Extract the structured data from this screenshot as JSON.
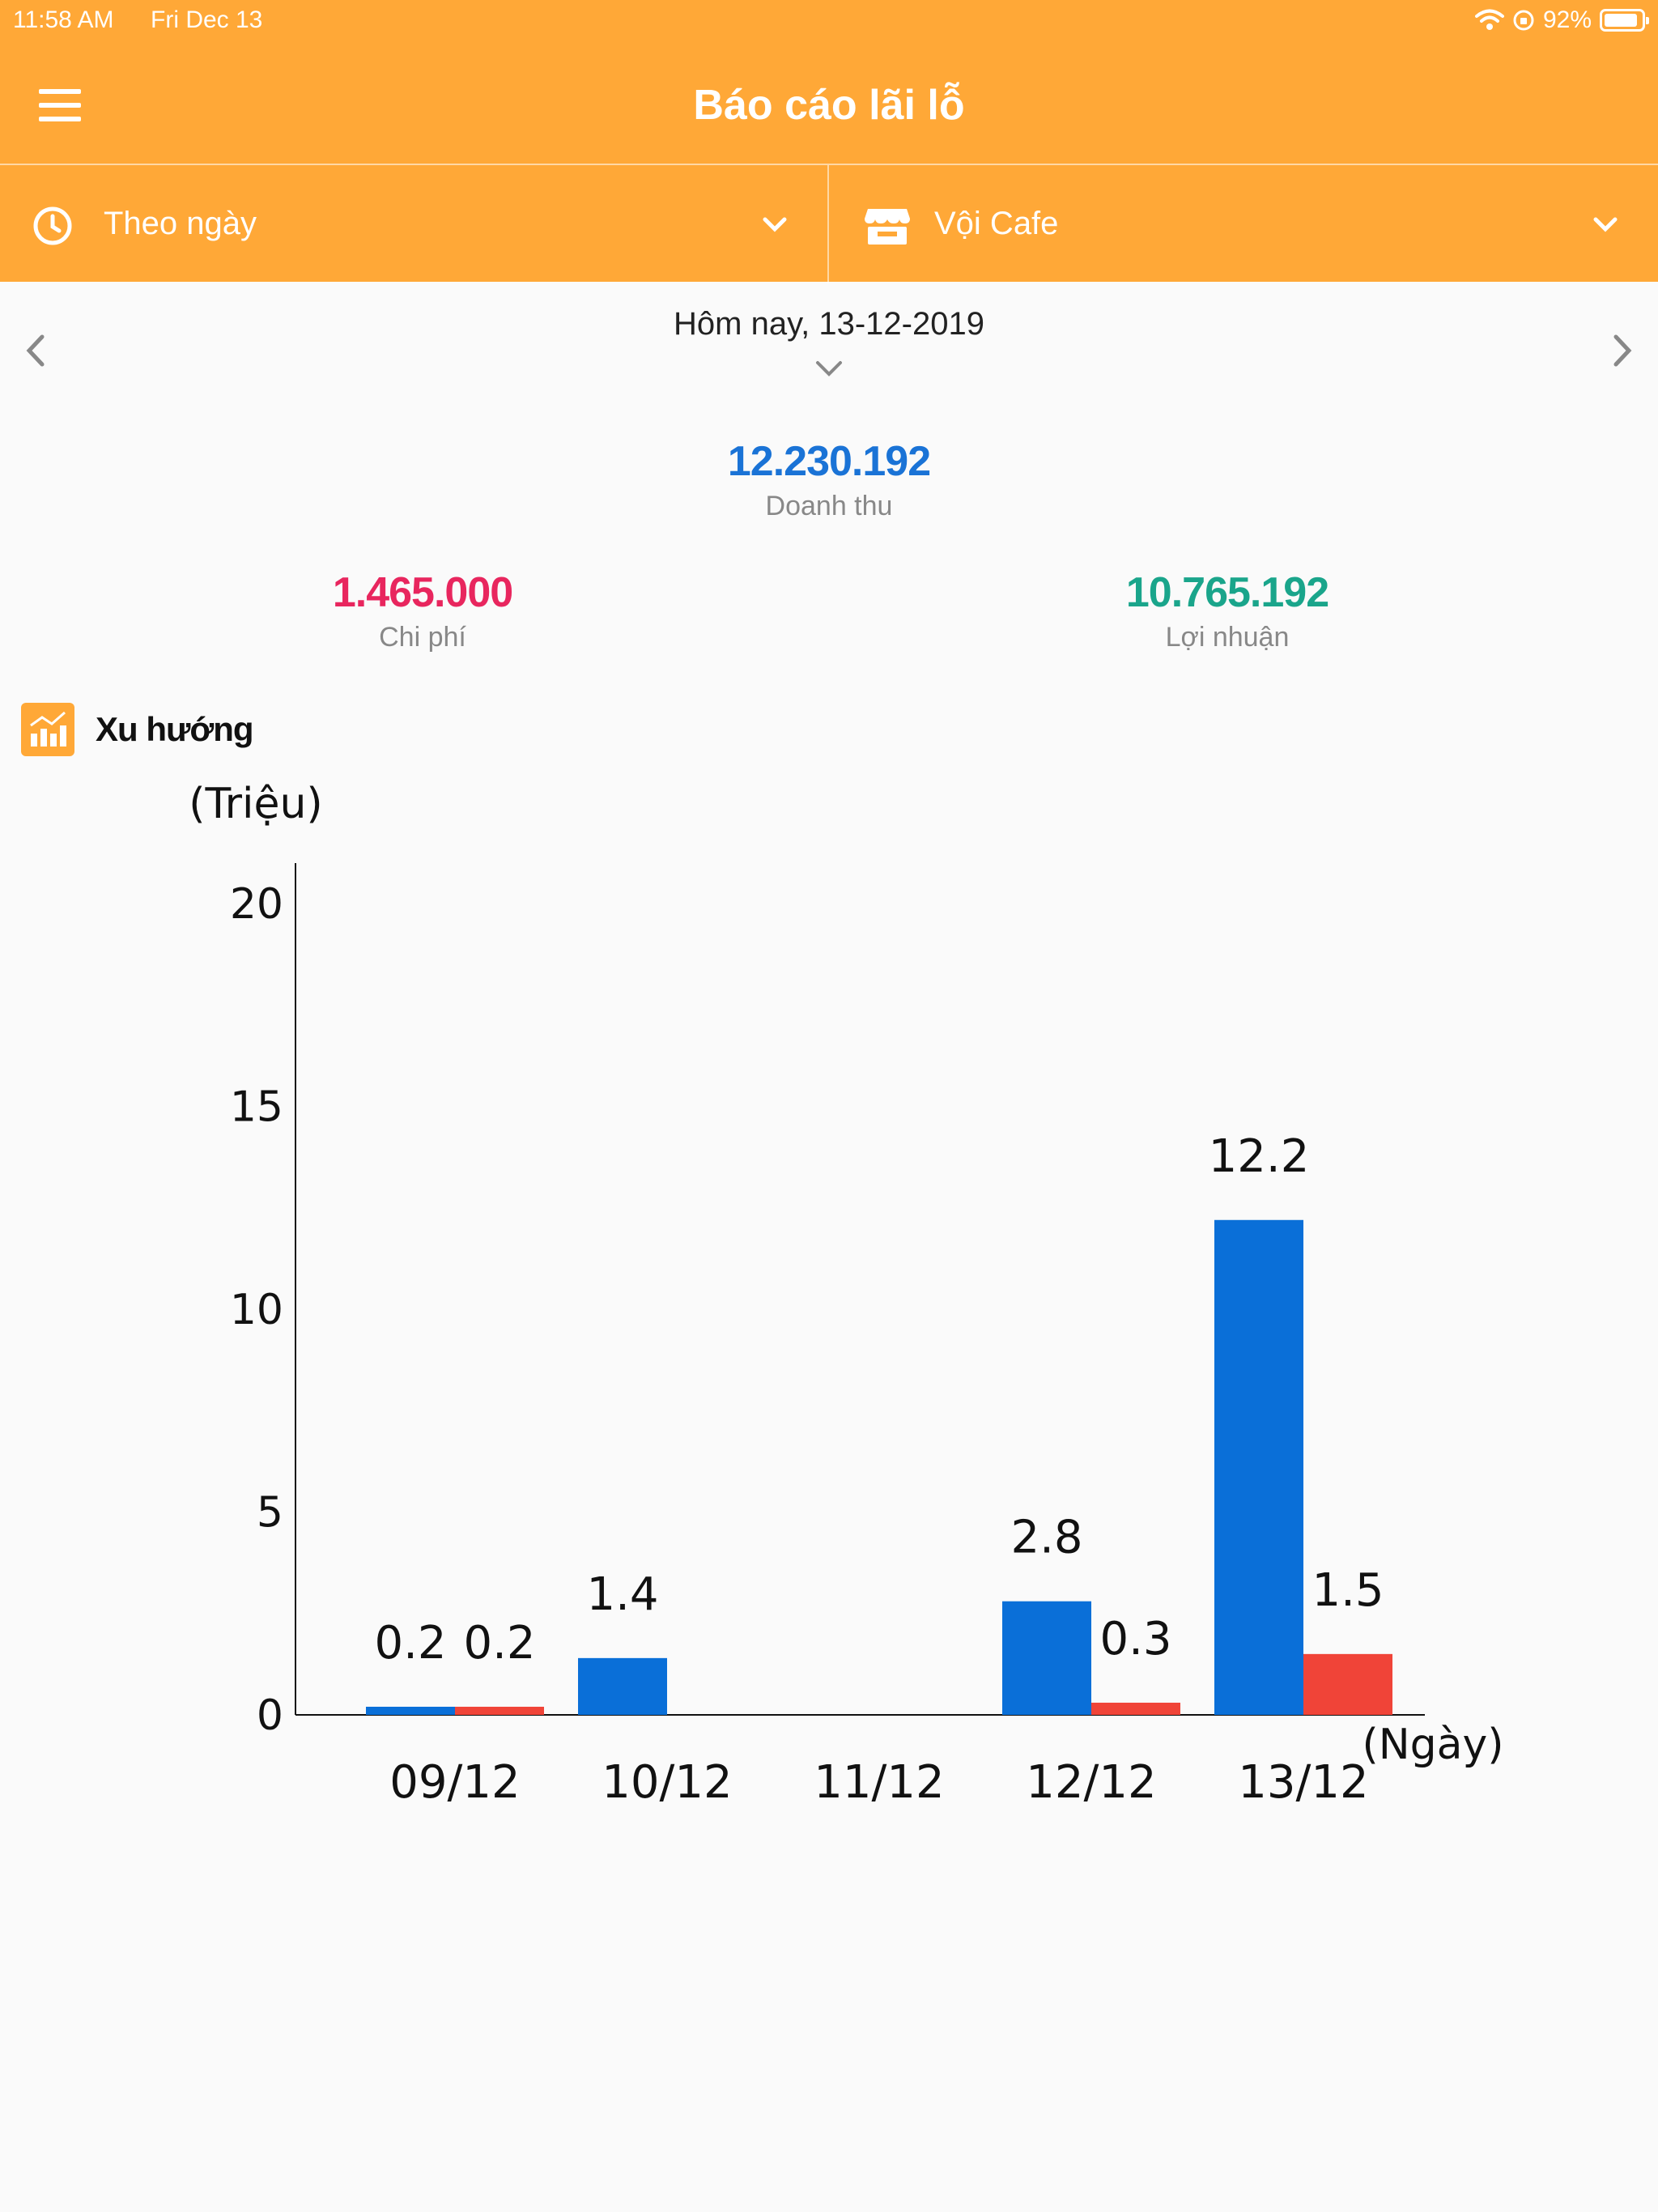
{
  "status_bar": {
    "time": "11:58 AM",
    "date": "Fri Dec 13",
    "battery": "92%",
    "battery_level": 0.92
  },
  "header": {
    "title": "Báo cáo lãi lỗ",
    "menu_icon": "hamburger-menu-icon"
  },
  "filters": {
    "period": {
      "label": "Theo ngày",
      "icon": "clock-icon"
    },
    "store": {
      "label": "Vội Cafe",
      "icon": "store-icon"
    }
  },
  "date_nav": {
    "label": "Hôm nay, 13-12-2019"
  },
  "summary": {
    "revenue": {
      "value": "12.230.192",
      "label": "Doanh thu",
      "color": "#1a73d6"
    },
    "expense": {
      "value": "1.465.000",
      "label": "Chi phí",
      "color": "#e8265e"
    },
    "profit": {
      "value": "10.765.192",
      "label": "Lợi nhuận",
      "color": "#1aa58b"
    }
  },
  "trend_section": {
    "title": "Xu hướng",
    "icon": "bar-chart-icon"
  },
  "colors": {
    "brand": "#ffa837",
    "revenue_bar": "#0a6fd8",
    "expense_bar": "#f04438"
  },
  "chart_data": {
    "type": "bar",
    "ylabel": "(Triệu)",
    "xlabel": "(Ngày)",
    "ylim": [
      0,
      20
    ],
    "yticks": [
      0,
      5,
      10,
      15,
      20
    ],
    "categories": [
      "09/12",
      "10/12",
      "11/12",
      "12/12",
      "13/12"
    ],
    "series": [
      {
        "values": [
          0.2,
          1.4,
          null,
          2.8,
          12.2
        ],
        "labels": [
          "0.2",
          "1.4",
          "",
          "2.8",
          "12.2"
        ],
        "color": "#0a6fd8"
      },
      {
        "values": [
          0.2,
          null,
          null,
          0.3,
          1.5
        ],
        "labels": [
          "0.2",
          "",
          "",
          "0.3",
          "1.5"
        ],
        "color": "#f04438"
      }
    ]
  }
}
